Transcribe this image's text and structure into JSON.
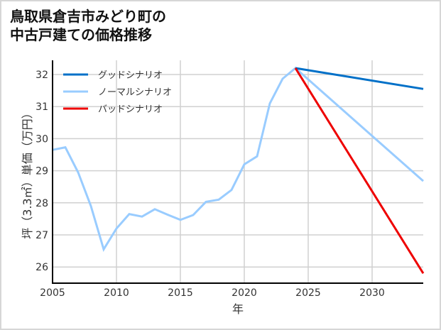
{
  "title_line1": "鳥取県倉吉市みどり町の",
  "title_line2": "中古戸建ての価格推移",
  "chart_data": {
    "type": "line",
    "title": "鳥取県倉吉市みどり町の中古戸建ての価格推移",
    "xlabel": "年",
    "ylabel": "坪（3.3㎡）単価（万円）",
    "xlim": [
      2005,
      2034
    ],
    "ylim": [
      25.5,
      32.5
    ],
    "x_ticks": [
      2005,
      2010,
      2015,
      2020,
      2025,
      2030
    ],
    "y_ticks": [
      26,
      27,
      28,
      29,
      30,
      31,
      32
    ],
    "grid": true,
    "legend_position": "upper left",
    "series": [
      {
        "name": "グッドシナリオ",
        "color": "#0070c8",
        "x": [
          2024,
          2034
        ],
        "values": [
          32.2,
          31.55
        ]
      },
      {
        "name": "ノーマルシナリオ",
        "color": "#99ccff",
        "x": [
          2005,
          2006,
          2007,
          2008,
          2009,
          2010,
          2011,
          2012,
          2013,
          2014,
          2015,
          2016,
          2017,
          2018,
          2019,
          2020,
          2021,
          2022,
          2023,
          2024,
          2034
        ],
        "values": [
          29.65,
          29.73,
          28.95,
          27.9,
          26.55,
          27.2,
          27.65,
          27.57,
          27.8,
          27.63,
          27.47,
          27.62,
          28.03,
          28.1,
          28.4,
          29.2,
          29.45,
          31.1,
          31.87,
          32.2,
          28.68
        ]
      },
      {
        "name": "バッドシナリオ",
        "color": "#ee0000",
        "x": [
          2024,
          2034
        ],
        "values": [
          32.2,
          25.8
        ]
      }
    ]
  }
}
